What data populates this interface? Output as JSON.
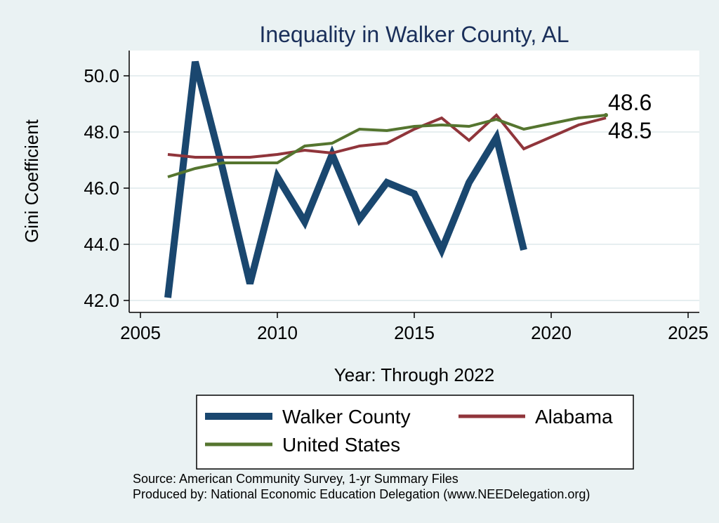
{
  "chart_data": {
    "type": "line",
    "title": "Inequality in Walker County, AL",
    "xlabel": "Year: Through 2022",
    "ylabel": "Gini Coefficient",
    "xlim": [
      2005,
      2025
    ],
    "ylim": [
      42.0,
      50.0
    ],
    "x_ticks": [
      "2005",
      "2010",
      "2015",
      "2020",
      "2025"
    ],
    "y_ticks": [
      "42.0",
      "44.0",
      "46.0",
      "48.0",
      "50.0"
    ],
    "grid": true,
    "legend_position": "bottom",
    "series": [
      {
        "name": "Walker County",
        "color": "#1a476f",
        "x": [
          2006,
          2007,
          2008,
          2009,
          2010,
          2011,
          2012,
          2013,
          2014,
          2015,
          2016,
          2017,
          2018,
          2019
        ],
        "values": [
          42.1,
          50.5,
          46.7,
          42.6,
          46.4,
          44.8,
          47.2,
          44.9,
          46.2,
          45.8,
          43.8,
          46.2,
          47.8,
          43.8
        ]
      },
      {
        "name": "Alabama",
        "color": "#90353b",
        "x": [
          2006,
          2007,
          2008,
          2009,
          2010,
          2011,
          2012,
          2013,
          2014,
          2015,
          2016,
          2017,
          2018,
          2019,
          2021,
          2022
        ],
        "values": [
          47.2,
          47.1,
          47.1,
          47.1,
          47.2,
          47.35,
          47.25,
          47.5,
          47.6,
          48.1,
          48.5,
          47.7,
          48.6,
          47.4,
          48.25,
          48.5
        ]
      },
      {
        "name": "United States",
        "color": "#55752f",
        "x": [
          2006,
          2007,
          2008,
          2009,
          2010,
          2011,
          2012,
          2013,
          2014,
          2015,
          2016,
          2017,
          2018,
          2019,
          2021,
          2022
        ],
        "values": [
          46.4,
          46.7,
          46.9,
          46.9,
          46.9,
          47.5,
          47.6,
          48.1,
          48.05,
          48.2,
          48.25,
          48.2,
          48.45,
          48.1,
          48.5,
          48.6
        ]
      }
    ],
    "end_labels": [
      {
        "text": "48.6",
        "series": "United States"
      },
      {
        "text": "48.5",
        "series": "Alabama"
      }
    ],
    "source_lines": [
      "Source: American Community Survey, 1-yr Summary Files",
      "Produced by: National Economic Education Delegation (www.NEEDelegation.org)"
    ]
  }
}
